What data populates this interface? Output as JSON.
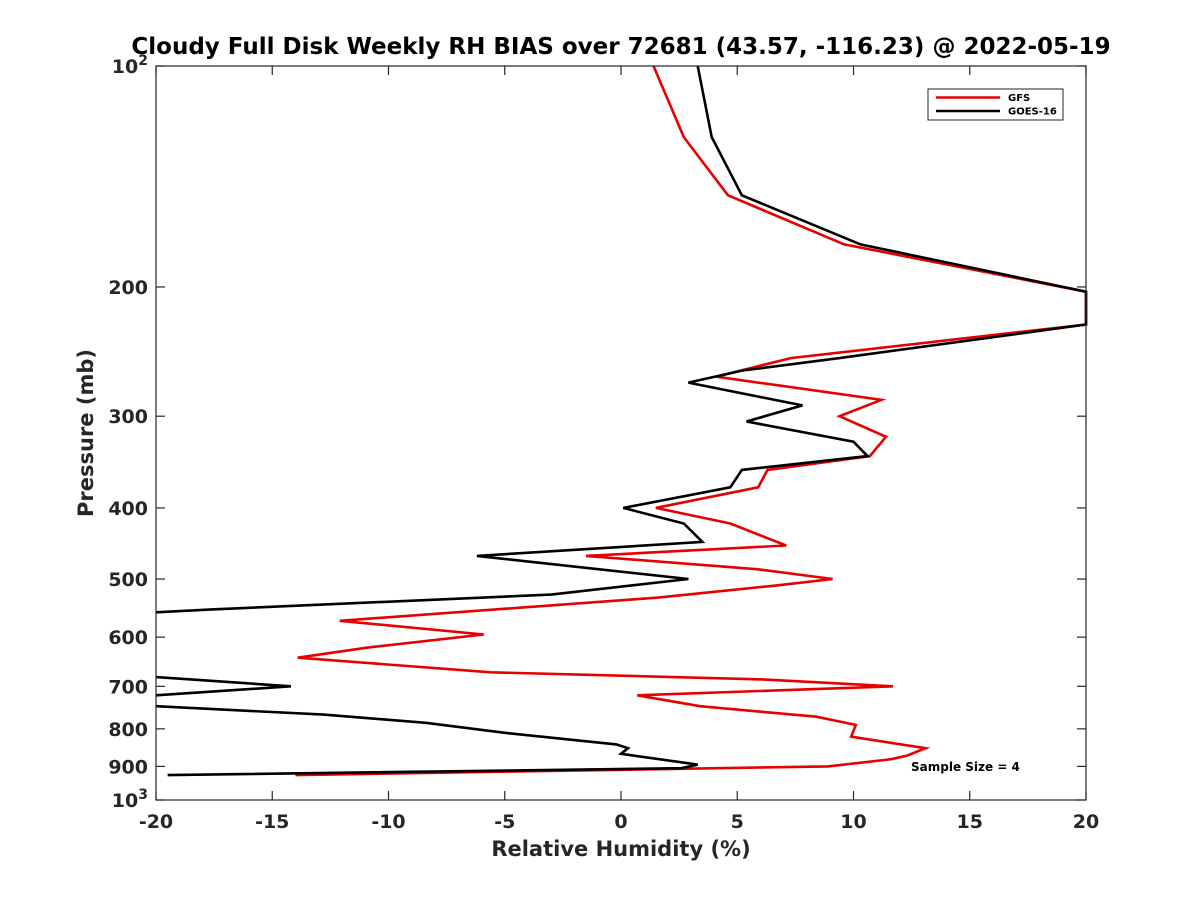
{
  "chart_data": {
    "type": "line",
    "title": "Cloudy Full Disk Weekly RH BIAS over 72681 (43.57, -116.23) @ 2022-05-19",
    "xlabel": "Relative Humidity (%)",
    "ylabel": "Pressure (mb)",
    "xlim": [
      -20,
      20
    ],
    "ylim": [
      100,
      1000
    ],
    "y_scale": "log",
    "y_reversed": true,
    "grid": false,
    "legend_position": "top-right",
    "x_ticks": [
      -20,
      -15,
      -10,
      -5,
      0,
      5,
      10,
      15,
      20
    ],
    "x_tick_labels": [
      "-20",
      "-15",
      "-10",
      "-5",
      "0",
      "5",
      "10",
      "15",
      "20"
    ],
    "y_ticks": [
      {
        "value": 100,
        "base": "10",
        "exp": "2"
      },
      {
        "value": 200,
        "label": "200"
      },
      {
        "value": 300,
        "label": "300"
      },
      {
        "value": 400,
        "label": "400"
      },
      {
        "value": 500,
        "label": "500"
      },
      {
        "value": 600,
        "label": "600"
      },
      {
        "value": 700,
        "label": "700"
      },
      {
        "value": 800,
        "label": "800"
      },
      {
        "value": 900,
        "label": "900"
      },
      {
        "value": 1000,
        "base": "10",
        "exp": "3"
      }
    ],
    "annotation": "Sample Size = 4",
    "series": [
      {
        "name": "GFS",
        "color": "#e60000",
        "points": [
          {
            "x": 1.4,
            "p": 100
          },
          {
            "x": 2.7,
            "p": 125
          },
          {
            "x": 4.6,
            "p": 150
          },
          {
            "x": 9.6,
            "p": 175
          },
          {
            "x": 20,
            "p": 203
          },
          {
            "x": 20,
            "p": 225
          },
          {
            "x": 7.3,
            "p": 250
          },
          {
            "x": 4.1,
            "p": 265
          },
          {
            "x": 11.2,
            "p": 285
          },
          {
            "x": 9.4,
            "p": 300
          },
          {
            "x": 11.4,
            "p": 320
          },
          {
            "x": 10.7,
            "p": 340
          },
          {
            "x": 6.3,
            "p": 355
          },
          {
            "x": 5.9,
            "p": 375
          },
          {
            "x": 1.5,
            "p": 400
          },
          {
            "x": 4.7,
            "p": 420
          },
          {
            "x": 7.1,
            "p": 450
          },
          {
            "x": -1.5,
            "p": 465
          },
          {
            "x": 5.9,
            "p": 485
          },
          {
            "x": 9.1,
            "p": 500
          },
          {
            "x": 6.7,
            "p": 510
          },
          {
            "x": 1.6,
            "p": 530
          },
          {
            "x": -12.1,
            "p": 570
          },
          {
            "x": -5.9,
            "p": 595
          },
          {
            "x": -10.9,
            "p": 620
          },
          {
            "x": -13.9,
            "p": 640
          },
          {
            "x": -5.6,
            "p": 670
          },
          {
            "x": 6.1,
            "p": 685
          },
          {
            "x": 11.7,
            "p": 700
          },
          {
            "x": 0.7,
            "p": 720
          },
          {
            "x": 3.4,
            "p": 745
          },
          {
            "x": 8.4,
            "p": 770
          },
          {
            "x": 10.1,
            "p": 790
          },
          {
            "x": 9.9,
            "p": 820
          },
          {
            "x": 13.1,
            "p": 850
          },
          {
            "x": 12.3,
            "p": 870
          },
          {
            "x": 11.6,
            "p": 880
          },
          {
            "x": 8.9,
            "p": 900
          },
          {
            "x": -14,
            "p": 925
          }
        ]
      },
      {
        "name": "GOES-16",
        "color": "#000000",
        "points": [
          {
            "x": 3.3,
            "p": 100
          },
          {
            "x": 3.9,
            "p": 125
          },
          {
            "x": 5.2,
            "p": 150
          },
          {
            "x": 10.3,
            "p": 175
          },
          {
            "x": 20,
            "p": 203
          },
          {
            "x": 20,
            "p": 225
          },
          {
            "x": 9.4,
            "p": 250
          },
          {
            "x": 5.2,
            "p": 260
          },
          {
            "x": 2.9,
            "p": 270
          },
          {
            "x": 7.8,
            "p": 290
          },
          {
            "x": 5.4,
            "p": 305
          },
          {
            "x": 10.0,
            "p": 325
          },
          {
            "x": 10.6,
            "p": 340
          },
          {
            "x": 5.2,
            "p": 355
          },
          {
            "x": 4.7,
            "p": 375
          },
          {
            "x": 0.1,
            "p": 400
          },
          {
            "x": 2.7,
            "p": 420
          },
          {
            "x": 3.5,
            "p": 445
          },
          {
            "x": -6.2,
            "p": 465
          },
          {
            "x": 2.9,
            "p": 500
          },
          {
            "x": -3.0,
            "p": 525
          },
          {
            "x": -17.6,
            "p": 550
          },
          {
            "x": -20,
            "p": 555
          }
        ]
      },
      {
        "name": "",
        "color": "#000000",
        "points": [
          {
            "x": -20,
            "p": 680
          },
          {
            "x": -14.2,
            "p": 700
          },
          {
            "x": -20,
            "p": 720
          }
        ]
      },
      {
        "name": "",
        "color": "#000000",
        "points": [
          {
            "x": -20,
            "p": 745
          },
          {
            "x": -12.8,
            "p": 765
          },
          {
            "x": -8.4,
            "p": 785
          },
          {
            "x": -5.0,
            "p": 810
          },
          {
            "x": -0.2,
            "p": 840
          },
          {
            "x": 0.3,
            "p": 850
          },
          {
            "x": 0.0,
            "p": 865
          },
          {
            "x": 3.3,
            "p": 895
          },
          {
            "x": 2.6,
            "p": 905
          },
          {
            "x": -19.5,
            "p": 925
          }
        ]
      }
    ]
  }
}
